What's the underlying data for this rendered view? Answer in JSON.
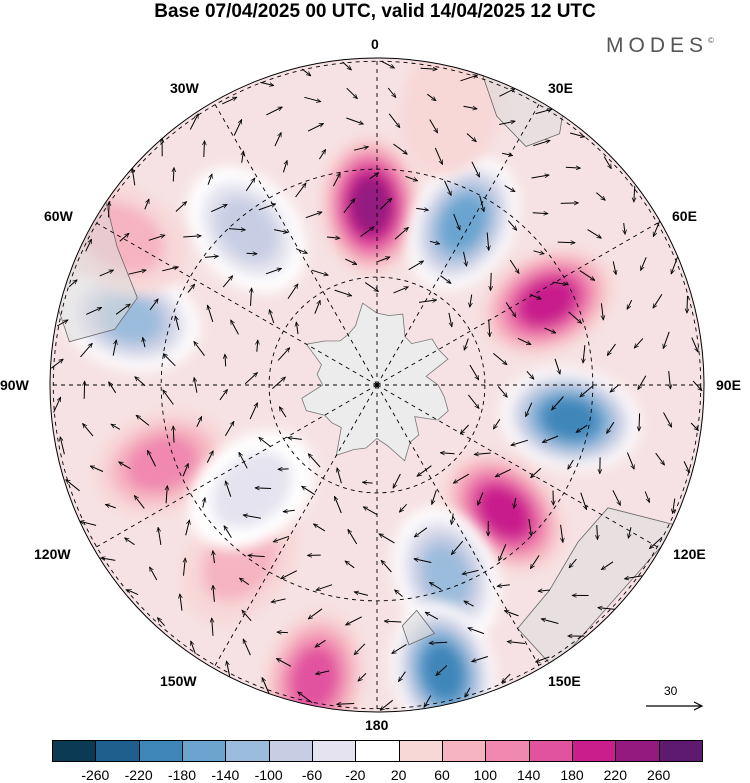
{
  "title": "Base 07/04/2025 00 UTC, valid 14/04/2025 12 UTC",
  "brand": {
    "name": "MODES",
    "mark": "©"
  },
  "longitude_labels": [
    "0",
    "30E",
    "60E",
    "90E",
    "120E",
    "150E",
    "180",
    "150W",
    "120W",
    "90W",
    "60W",
    "30W"
  ],
  "reference_vector": {
    "label": "30"
  },
  "colorbar": {
    "colors": [
      "#0b3a55",
      "#1f5f8e",
      "#3f86b9",
      "#6aa4cf",
      "#9bbcdc",
      "#c7cde3",
      "#e4e3ef",
      "#ffffff",
      "#f8d7d7",
      "#f5b4c0",
      "#f088b0",
      "#e2539f",
      "#c81f8c",
      "#941a80",
      "#5e1a6f"
    ],
    "tick_labels": [
      "-260",
      "-220",
      "-180",
      "-140",
      "-100",
      "-60",
      "-20",
      "20",
      "60",
      "100",
      "140",
      "180",
      "220",
      "260"
    ]
  },
  "anomalies": [
    {
      "lon": -2,
      "lat_r": 0.55,
      "value": 250
    },
    {
      "lon": 28,
      "lat_r": 0.56,
      "value": -190
    },
    {
      "lon": 64,
      "lat_r": 0.58,
      "value": 210
    },
    {
      "lon": 100,
      "lat_r": 0.6,
      "value": -240
    },
    {
      "lon": 135,
      "lat_r": 0.55,
      "value": 200
    },
    {
      "lon": 160,
      "lat_r": 0.62,
      "value": -170
    },
    {
      "lon": 167,
      "lat_r": 0.9,
      "value": -230
    },
    {
      "lon": -168,
      "lat_r": 0.92,
      "value": 150
    },
    {
      "lon": -142,
      "lat_r": 0.68,
      "value": 70
    },
    {
      "lon": -110,
      "lat_r": 0.7,
      "value": 120
    },
    {
      "lon": -75,
      "lat_r": 0.78,
      "value": -140
    },
    {
      "lon": -40,
      "lat_r": 0.62,
      "value": -130
    },
    {
      "lon": -60,
      "lat_r": 0.9,
      "value": 70
    },
    {
      "lon": 15,
      "lat_r": 0.88,
      "value": 50
    },
    {
      "lon": -130,
      "lat_r": 0.5,
      "value": -60
    }
  ]
}
